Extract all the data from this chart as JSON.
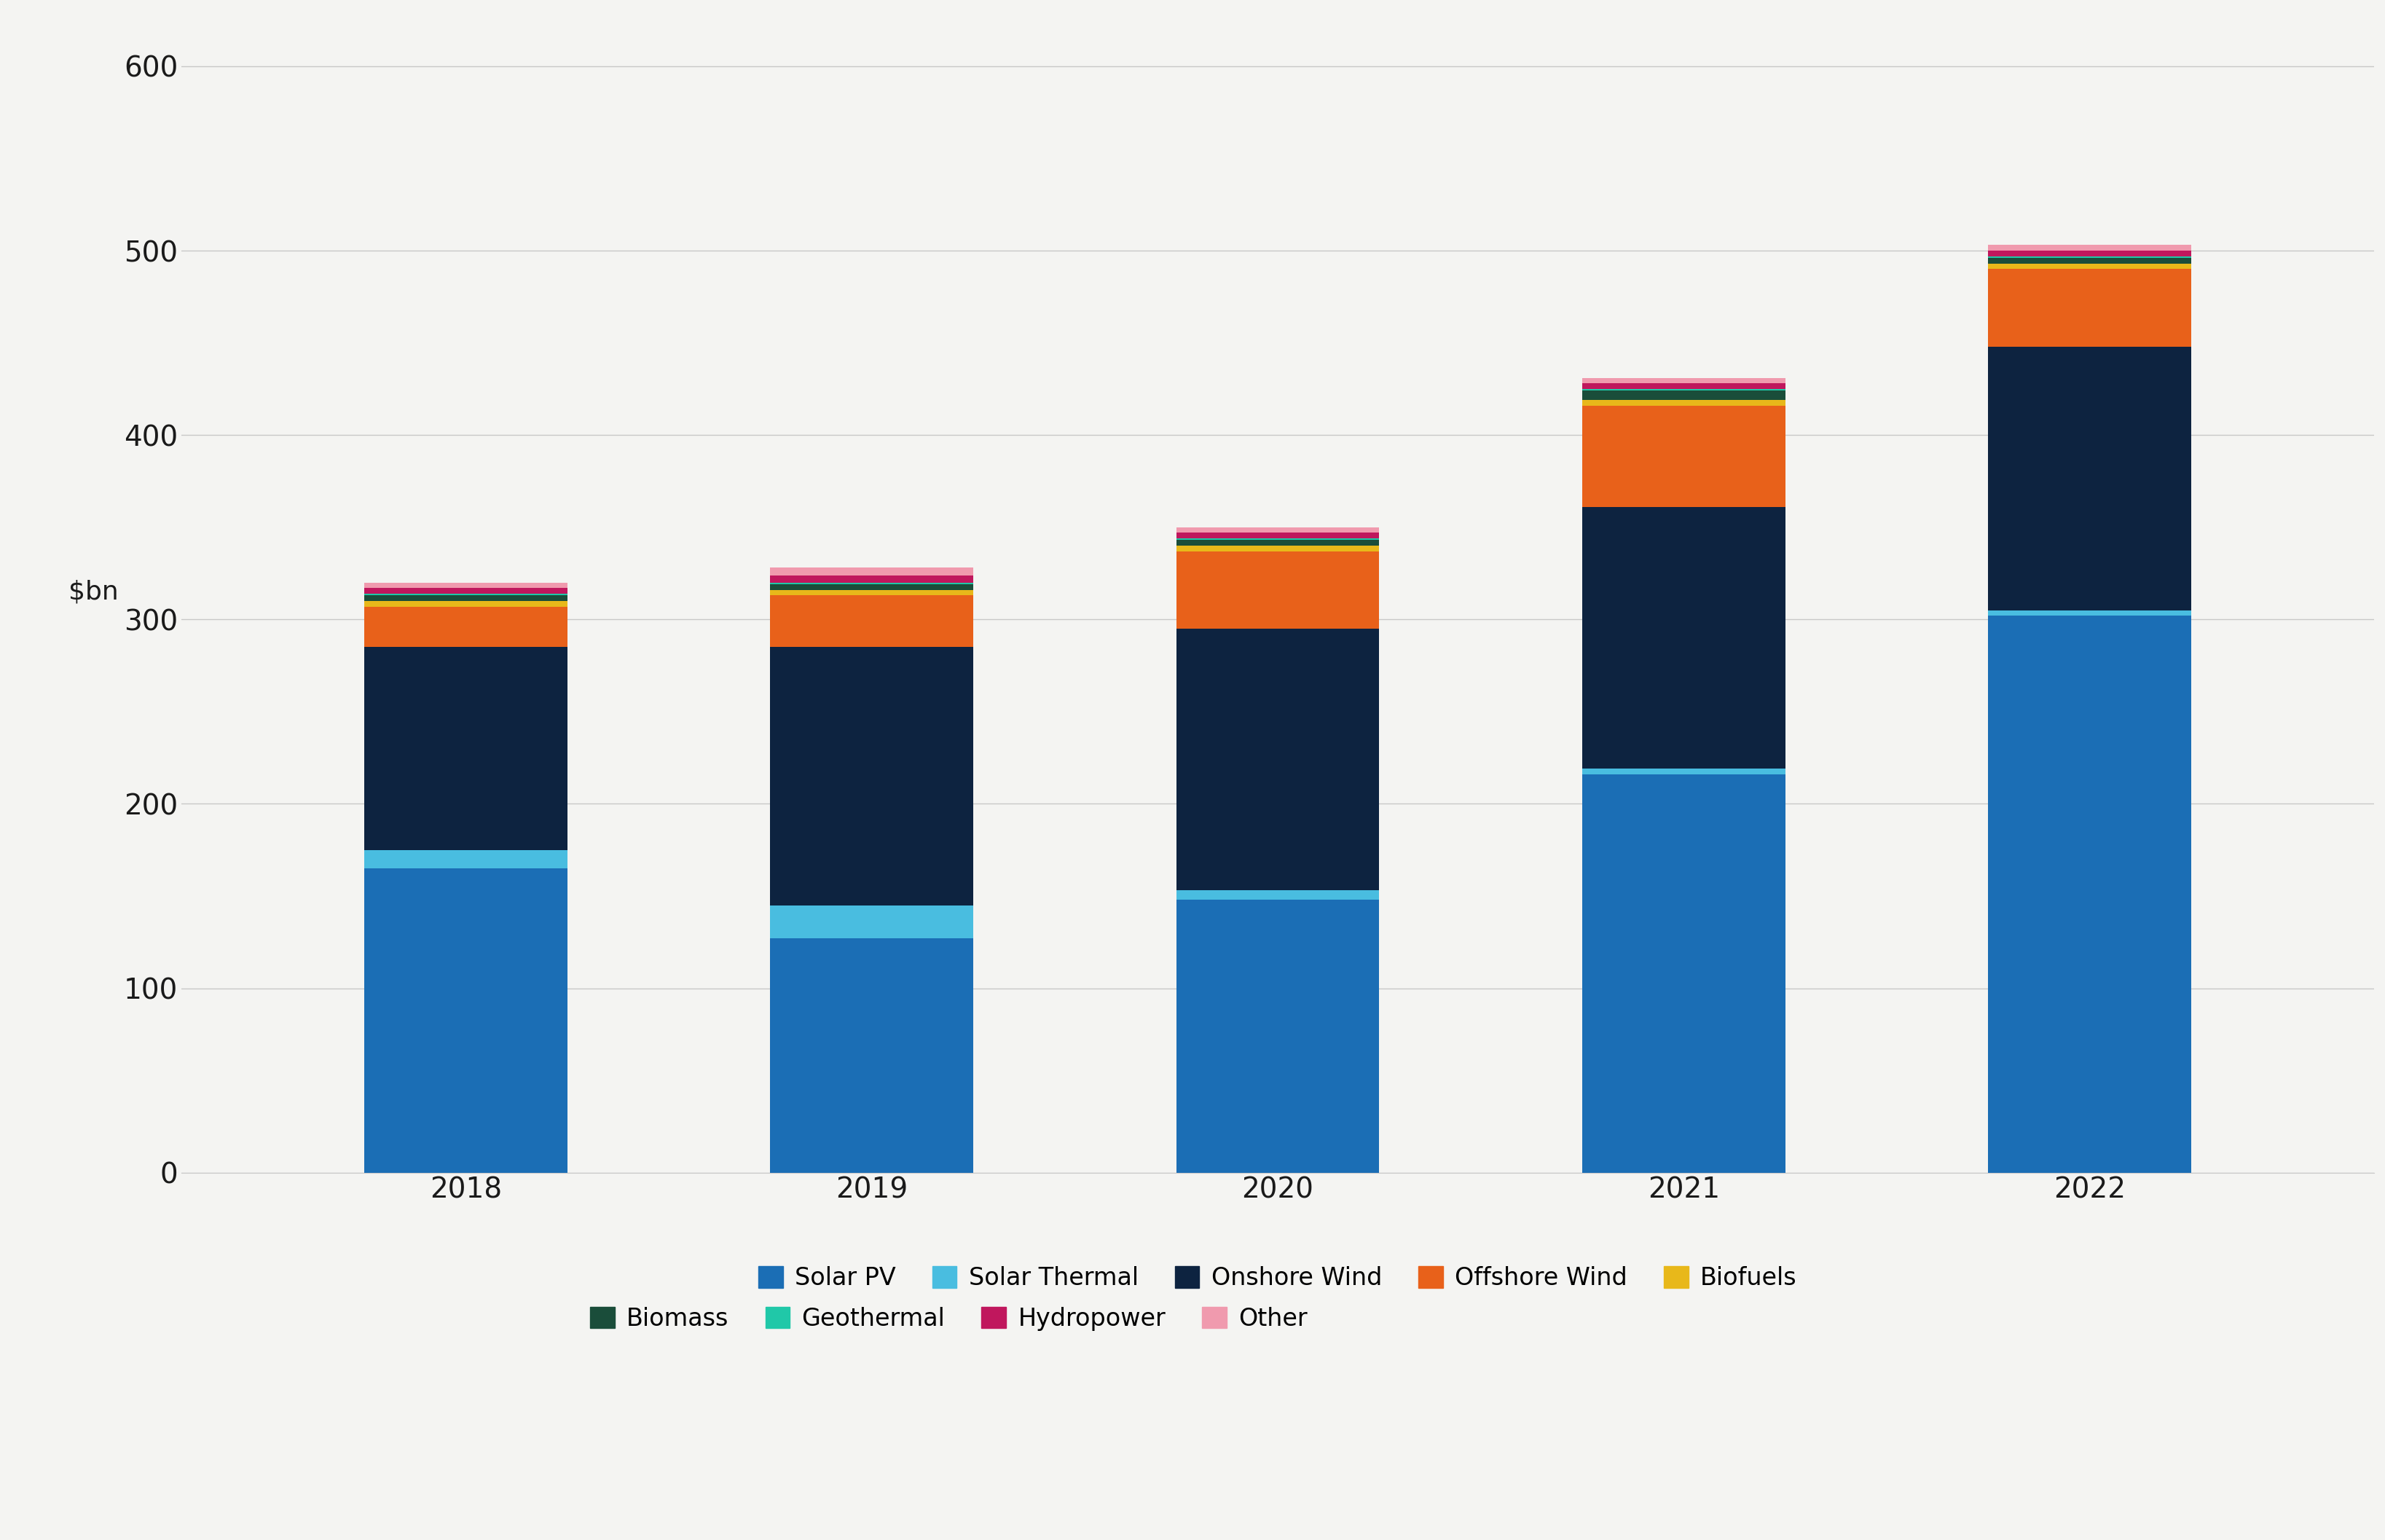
{
  "years": [
    "2018",
    "2019",
    "2020",
    "2021",
    "2022"
  ],
  "series": {
    "Solar PV": [
      165,
      127,
      148,
      216,
      302
    ],
    "Solar Thermal": [
      10,
      18,
      5,
      3,
      3
    ],
    "Onshore Wind": [
      110,
      140,
      142,
      142,
      143
    ],
    "Offshore Wind": [
      22,
      28,
      42,
      55,
      42
    ],
    "Biofuels": [
      3,
      3,
      3,
      3,
      3
    ],
    "Biomass": [
      3,
      3,
      3,
      5,
      3
    ],
    "Geothermal": [
      1,
      1,
      1,
      1,
      1
    ],
    "Hydropower": [
      3,
      4,
      3,
      3,
      3
    ],
    "Other": [
      3,
      4,
      3,
      3,
      3
    ]
  },
  "colors": {
    "Solar PV": "#1B6EB5",
    "Solar Thermal": "#49BDE0",
    "Onshore Wind": "#0D2340",
    "Offshore Wind": "#E8611A",
    "Biofuels": "#E8B81A",
    "Biomass": "#1A4D3A",
    "Geothermal": "#20C8A8",
    "Hydropower": "#C0175D",
    "Other": "#F09AAE"
  },
  "ylabel": "$bn",
  "ylim": [
    0,
    630
  ],
  "yticks": [
    0,
    100,
    200,
    300,
    400,
    500,
    600
  ],
  "background_color": "#F4F4F2",
  "bar_width": 0.5,
  "tick_fontsize": 28,
  "legend_fontsize": 24,
  "ylabel_fontsize": 26
}
